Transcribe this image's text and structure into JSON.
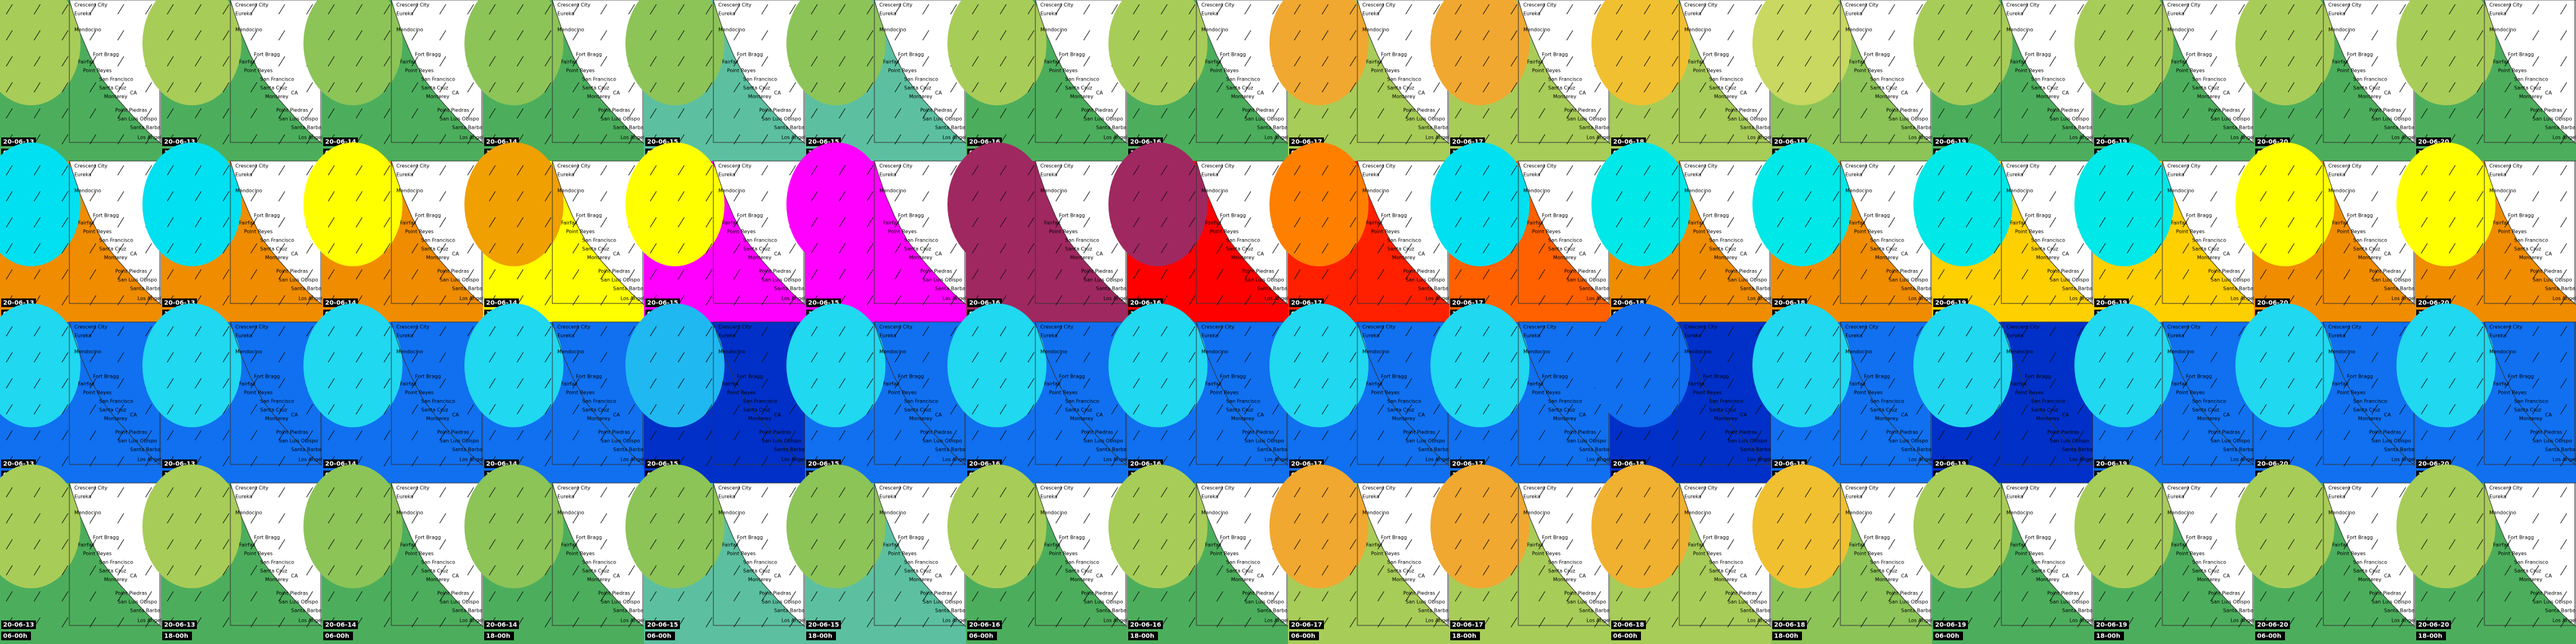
{
  "columns": [
    {
      "date": "20-06-13",
      "time": "06-00h"
    },
    {
      "date": "20-06-13",
      "time": "18-00h"
    },
    {
      "date": "20-06-14",
      "time": "06-00h"
    },
    {
      "date": "20-06-14",
      "time": "18-00h"
    },
    {
      "date": "20-06-15",
      "time": "06-00h"
    },
    {
      "date": "20-06-15",
      "time": "18-00h"
    },
    {
      "date": "20-06-16",
      "time": "06-00h"
    },
    {
      "date": "20-06-16",
      "time": "18-00h"
    },
    {
      "date": "20-06-17",
      "time": "06-00h"
    },
    {
      "date": "20-06-17",
      "time": "18-00h"
    },
    {
      "date": "20-06-18",
      "time": "06-00h"
    },
    {
      "date": "20-06-18",
      "time": "18-00h"
    },
    {
      "date": "20-06-19",
      "time": "06-00h"
    },
    {
      "date": "20-06-19",
      "time": "18-00h"
    },
    {
      "date": "20-06-20",
      "time": "06-00h"
    },
    {
      "date": "20-06-20",
      "time": "18-00h"
    }
  ],
  "places": [
    "Crescent City",
    "Eureka",
    "Mendocino",
    "Fort Bragg",
    "Fairfax",
    "Point Reyes",
    "San Francisco",
    "Santa Cruz",
    "Monterey",
    "CA",
    "Point Piedras",
    "San Luis Obispo",
    "Santa Barbara",
    "Los Angeles"
  ],
  "rows": [
    {
      "colors": [
        {
          "base": "#4cae5c",
          "blob": "#a8cc58"
        },
        {
          "base": "#4cae5c",
          "blob": "#a8cc58"
        },
        {
          "base": "#4cae5c",
          "blob": "#8cc458"
        },
        {
          "base": "#4cae5c",
          "blob": "#8cc458"
        },
        {
          "base": "#5cc0a0",
          "blob": "#8cc458"
        },
        {
          "base": "#5cc0a0",
          "blob": "#8cc458"
        },
        {
          "base": "#4cae5c",
          "blob": "#a8cc58"
        },
        {
          "base": "#4cae5c",
          "blob": "#a8cc58"
        },
        {
          "base": "#a8cc58",
          "blob": "#f0a830"
        },
        {
          "base": "#a8cc58",
          "blob": "#f0a830"
        },
        {
          "base": "#a8cc58",
          "blob": "#f0c030"
        },
        {
          "base": "#8cc458",
          "blob": "#c8d860"
        },
        {
          "base": "#4cae5c",
          "blob": "#a8cc58"
        },
        {
          "base": "#4cae5c",
          "blob": "#a8cc58"
        },
        {
          "base": "#4cae5c",
          "blob": "#a8cc58"
        },
        {
          "base": "#4cae5c",
          "blob": "#a8cc58"
        }
      ]
    },
    {
      "colors": [
        {
          "base": "#f08c00",
          "blob": "#00e0f0"
        },
        {
          "base": "#f08c00",
          "blob": "#00e0f0"
        },
        {
          "base": "#f08c00",
          "blob": "#ffff00"
        },
        {
          "base": "#ffff00",
          "blob": "#f0a000"
        },
        {
          "base": "#ff00ff",
          "blob": "#ffff00"
        },
        {
          "base": "#ff00ff",
          "blob": "#ff00ff"
        },
        {
          "base": "#a02860",
          "blob": "#a02860"
        },
        {
          "base": "#ff0000",
          "blob": "#a02860"
        },
        {
          "base": "#ff2000",
          "blob": "#ff8000"
        },
        {
          "base": "#ff6000",
          "blob": "#00e0f0"
        },
        {
          "base": "#f08c00",
          "blob": "#00e8e8"
        },
        {
          "base": "#f08c00",
          "blob": "#00e8e8"
        },
        {
          "base": "#ffd000",
          "blob": "#00e8e8"
        },
        {
          "base": "#ffd000",
          "blob": "#00e8e8"
        },
        {
          "base": "#f08c00",
          "blob": "#ffff00"
        },
        {
          "base": "#f08c00",
          "blob": "#ffff00"
        }
      ]
    },
    {
      "colors": [
        {
          "base": "#1070f0",
          "blob": "#20d8f0"
        },
        {
          "base": "#1070f0",
          "blob": "#20d8f0"
        },
        {
          "base": "#1070f0",
          "blob": "#20d8f0"
        },
        {
          "base": "#1070f0",
          "blob": "#20d8f0"
        },
        {
          "base": "#0030c8",
          "blob": "#20b8f0"
        },
        {
          "base": "#1070f0",
          "blob": "#20d8f0"
        },
        {
          "base": "#1070f0",
          "blob": "#20d8f0"
        },
        {
          "base": "#1070f0",
          "blob": "#20d8f0"
        },
        {
          "base": "#1070f0",
          "blob": "#20d8f0"
        },
        {
          "base": "#1070f0",
          "blob": "#20d8f0"
        },
        {
          "base": "#0030c8",
          "blob": "#1070f0"
        },
        {
          "base": "#1070f0",
          "blob": "#20d8f0"
        },
        {
          "base": "#0030c8",
          "blob": "#20d8f0"
        },
        {
          "base": "#1070f0",
          "blob": "#20d8f0"
        },
        {
          "base": "#1070f0",
          "blob": "#20d8f0"
        },
        {
          "base": "#1070f0",
          "blob": "#20d8f0"
        }
      ]
    },
    {
      "colors": [
        {
          "base": "#4cae5c",
          "blob": "#a8cc58"
        },
        {
          "base": "#4cae5c",
          "blob": "#a8cc58"
        },
        {
          "base": "#4cae5c",
          "blob": "#8cc458"
        },
        {
          "base": "#4cae5c",
          "blob": "#8cc458"
        },
        {
          "base": "#5cc0a0",
          "blob": "#8cc458"
        },
        {
          "base": "#5cc0a0",
          "blob": "#8cc458"
        },
        {
          "base": "#4cae5c",
          "blob": "#a8cc58"
        },
        {
          "base": "#4cae5c",
          "blob": "#a8cc58"
        },
        {
          "base": "#a8cc58",
          "blob": "#f0a830"
        },
        {
          "base": "#a8cc58",
          "blob": "#f0a830"
        },
        {
          "base": "#a8cc58",
          "blob": "#f0b030"
        },
        {
          "base": "#8cc458",
          "blob": "#f0c030"
        },
        {
          "base": "#4cae5c",
          "blob": "#a8cc58"
        },
        {
          "base": "#4cae5c",
          "blob": "#a8cc58"
        },
        {
          "base": "#4cae5c",
          "blob": "#a8cc58"
        },
        {
          "base": "#4cae5c",
          "blob": "#a8cc58"
        }
      ]
    }
  ]
}
